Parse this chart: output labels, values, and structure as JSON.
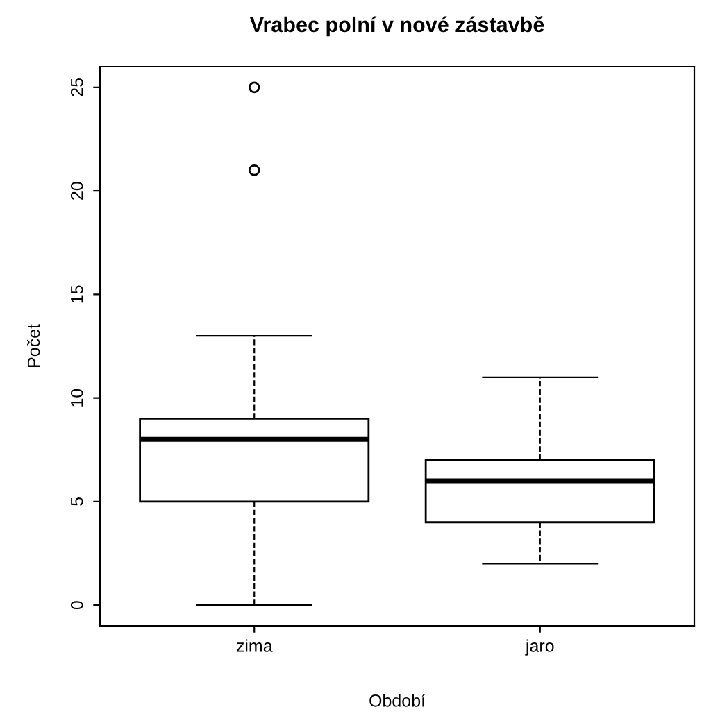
{
  "chart_data": {
    "type": "box",
    "title": "Vrabec polní v nové zástavbě",
    "xlabel": "Období",
    "ylabel": "Počet",
    "categories": [
      "zima",
      "jaro"
    ],
    "boxes": [
      {
        "low": 0,
        "q1": 5,
        "median": 8,
        "q3": 9,
        "high": 13,
        "outliers": [
          21,
          25
        ]
      },
      {
        "low": 2,
        "q1": 4,
        "median": 6,
        "q3": 7,
        "high": 11
      }
    ],
    "ylim": [
      -1,
      26
    ],
    "yticks": [
      0,
      5,
      10,
      15,
      20,
      25
    ],
    "grid": false,
    "line_style": "dashed",
    "color": "#ffffff"
  }
}
